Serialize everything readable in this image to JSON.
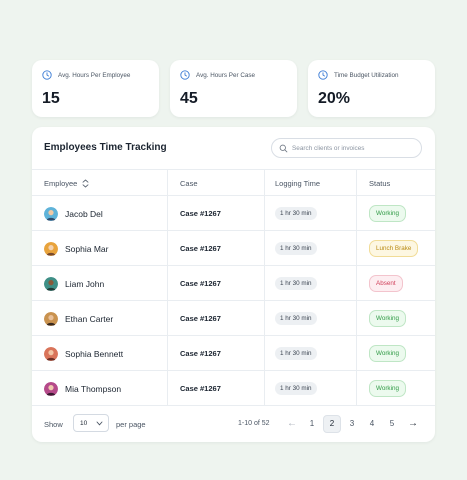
{
  "stats": [
    {
      "label": "Avg. Hours Per Employee",
      "value": "15"
    },
    {
      "label": "Avg. Hours Per Case",
      "value": "45"
    },
    {
      "label": "Time Budget Utilization",
      "value": "20%"
    }
  ],
  "table": {
    "title": "Employees Time Tracking",
    "search_placeholder": "Search clients or invoices",
    "headers": {
      "employee": "Employee",
      "case": "Case",
      "logging": "Logging Time",
      "status": "Status"
    },
    "rows": [
      {
        "name": "Jacob Del",
        "case": "Case #1267",
        "time": "1 hr 30 min",
        "status": "Working",
        "avatar_color": "#5fb3d9"
      },
      {
        "name": "Sophia Mar",
        "case": "Case #1267",
        "time": "1 hr 30 min",
        "status": "Lunch Brake",
        "avatar_color": "#e8a33c"
      },
      {
        "name": "Liam John",
        "case": "Case #1267",
        "time": "1 hr 30 min",
        "status": "Absent",
        "avatar_color": "#3f8f86"
      },
      {
        "name": "Ethan Carter",
        "case": "Case #1267",
        "time": "1 hr 30 min",
        "status": "Working",
        "avatar_color": "#c9924f"
      },
      {
        "name": "Sophia Bennett",
        "case": "Case #1267",
        "time": "1 hr 30 min",
        "status": "Working",
        "avatar_color": "#d9745a"
      },
      {
        "name": "Mia Thompson",
        "case": "Case #1267",
        "time": "1 hr 30 min",
        "status": "Working",
        "avatar_color": "#b54a8a"
      }
    ]
  },
  "pagination": {
    "show_label": "Show",
    "page_size": "10",
    "per_page_label": "per page",
    "range": "1-10 of 52",
    "prev": "←",
    "next": "→",
    "pages": [
      "1",
      "2",
      "3",
      "4",
      "5"
    ],
    "active_page": "2"
  },
  "colors": {
    "accent": "#3a7bd5",
    "working": "#2f9a45",
    "lunch": "#b98a12",
    "absent": "#d0415b"
  }
}
